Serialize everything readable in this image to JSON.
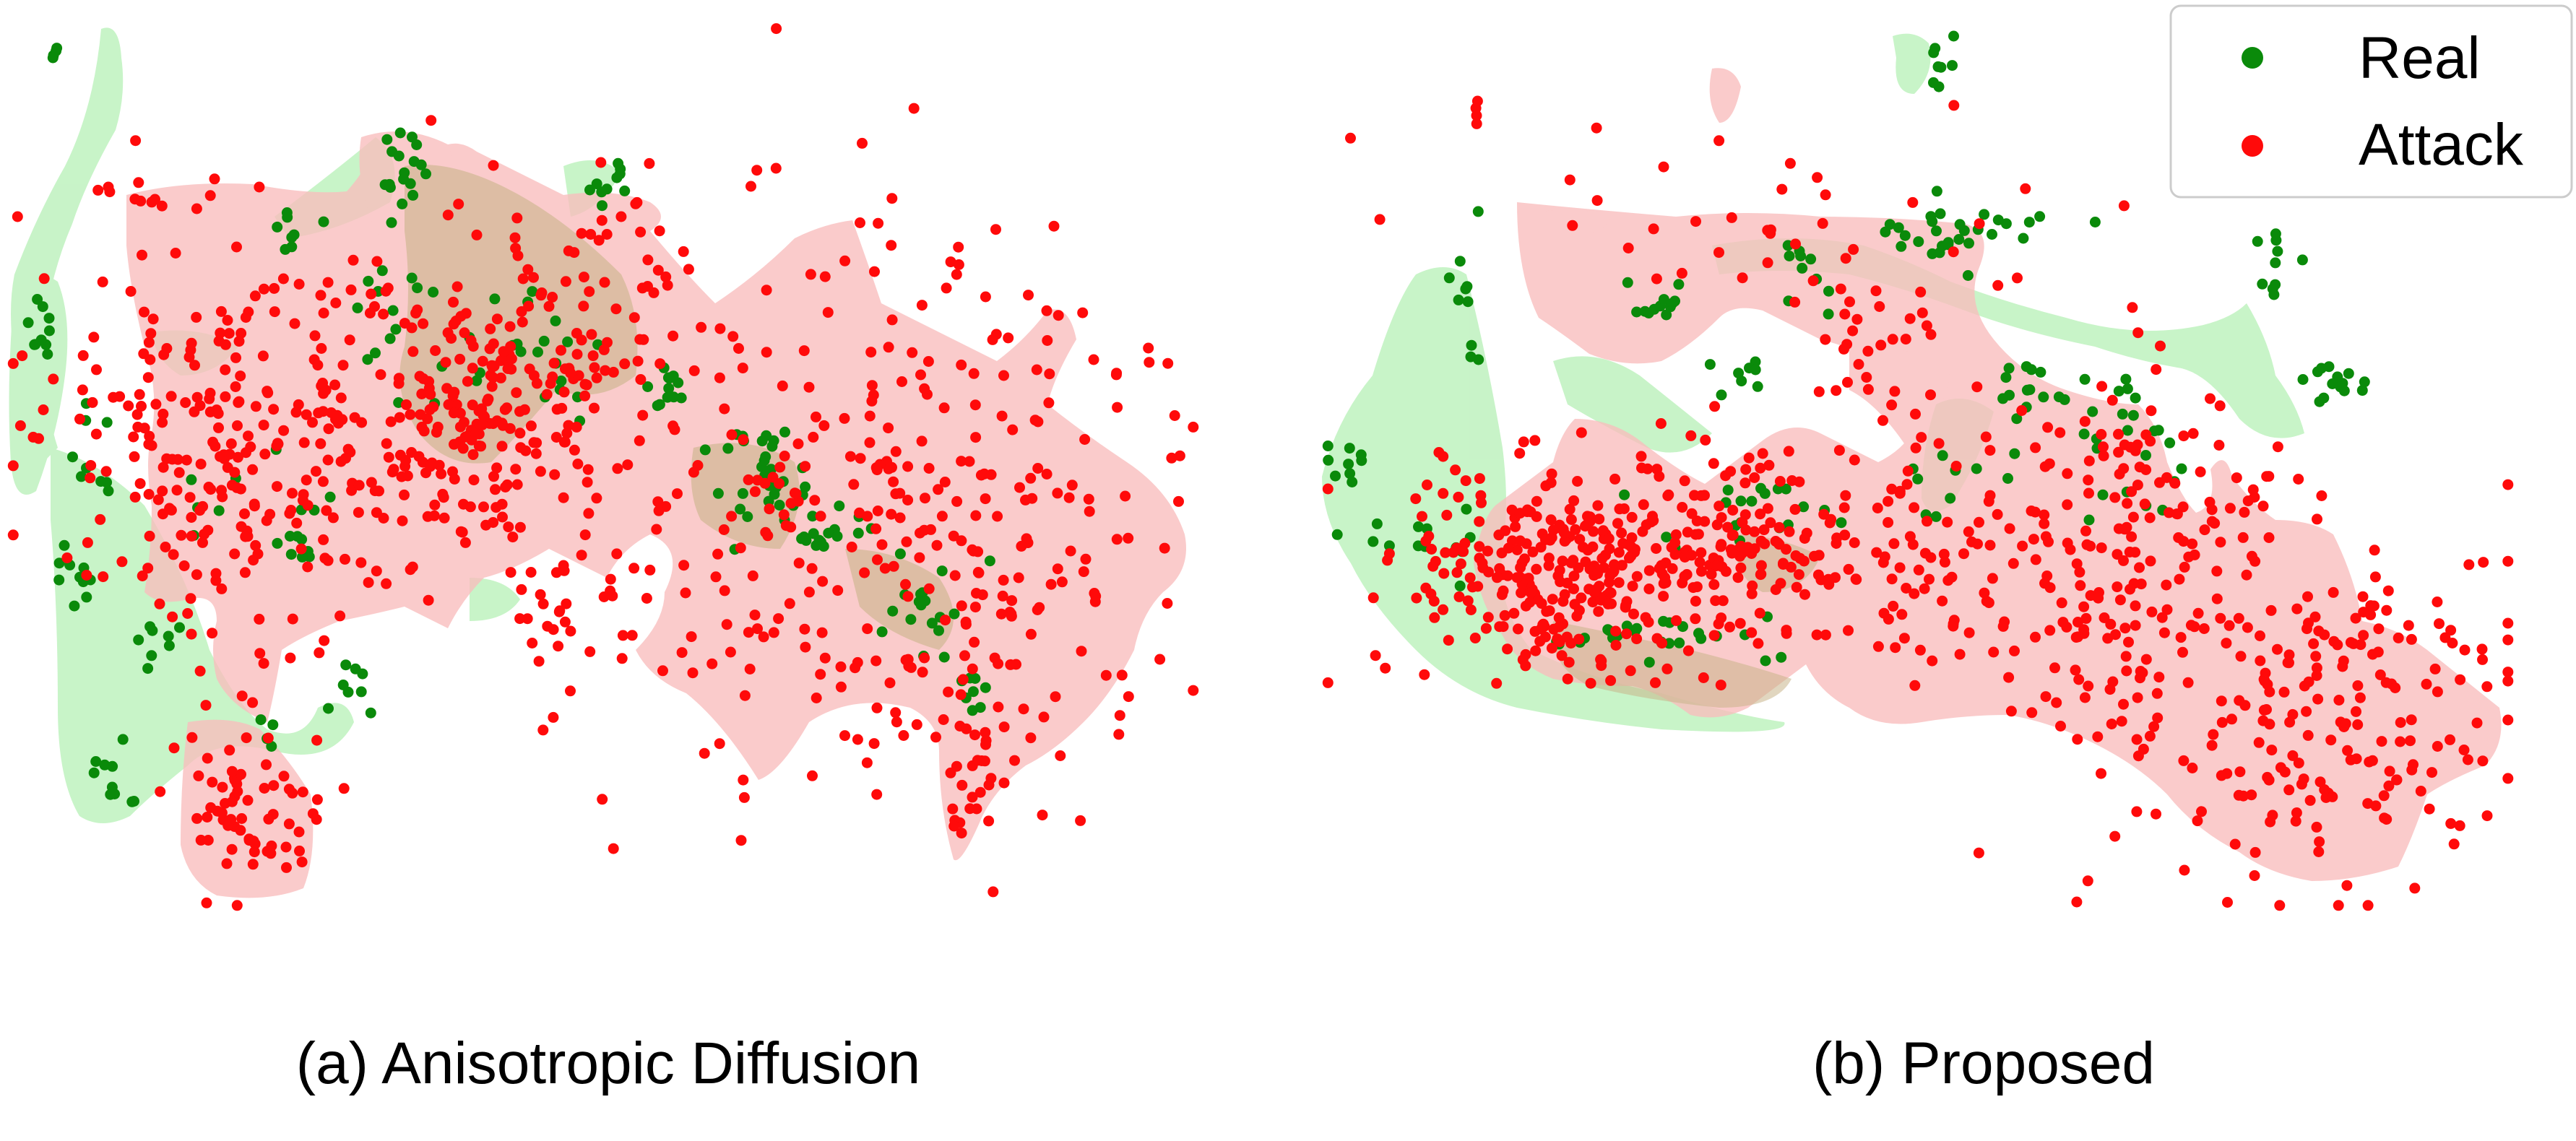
{
  "colors": {
    "real": "#0a8a0a",
    "attack": "#ff0a0a",
    "real_region": "#b6f0b6",
    "attack_region": "#f9b9b9",
    "overlap_region": "#c9b48a"
  },
  "legend": {
    "items": [
      {
        "label": "Real",
        "color": "#0a8a0a"
      },
      {
        "label": "Attack",
        "color": "#ff0a0a"
      }
    ]
  },
  "chart_data": [
    {
      "type": "scatter",
      "title": "(a) Anisotropic Diffusion",
      "axes_visible": false,
      "grid": false,
      "series": [
        {
          "name": "Real",
          "color": "#0a8a0a",
          "clusters": [
            {
              "cx": 0.04,
              "cy": 0.04,
              "n": 4,
              "sx": 0.004,
              "sy": 0.006
            },
            {
              "cx": 0.03,
              "cy": 0.36,
              "n": 10,
              "sx": 0.006,
              "sy": 0.03
            },
            {
              "cx": 0.07,
              "cy": 0.5,
              "n": 8,
              "sx": 0.012,
              "sy": 0.025
            },
            {
              "cx": 0.06,
              "cy": 0.62,
              "n": 10,
              "sx": 0.01,
              "sy": 0.02
            },
            {
              "cx": 0.13,
              "cy": 0.7,
              "n": 8,
              "sx": 0.01,
              "sy": 0.02
            },
            {
              "cx": 0.09,
              "cy": 0.85,
              "n": 10,
              "sx": 0.01,
              "sy": 0.02
            },
            {
              "cx": 0.29,
              "cy": 0.75,
              "n": 8,
              "sx": 0.01,
              "sy": 0.02
            },
            {
              "cx": 0.33,
              "cy": 0.17,
              "n": 18,
              "sx": 0.012,
              "sy": 0.025
            },
            {
              "cx": 0.24,
              "cy": 0.24,
              "n": 8,
              "sx": 0.012,
              "sy": 0.015
            },
            {
              "cx": 0.5,
              "cy": 0.18,
              "n": 10,
              "sx": 0.012,
              "sy": 0.02
            },
            {
              "cx": 0.32,
              "cy": 0.32,
              "n": 10,
              "sx": 0.015,
              "sy": 0.03
            },
            {
              "cx": 0.42,
              "cy": 0.38,
              "n": 25,
              "sx": 0.04,
              "sy": 0.05
            },
            {
              "cx": 0.55,
              "cy": 0.42,
              "n": 12,
              "sx": 0.012,
              "sy": 0.015
            },
            {
              "cx": 0.64,
              "cy": 0.52,
              "n": 30,
              "sx": 0.025,
              "sy": 0.04
            },
            {
              "cx": 0.68,
              "cy": 0.58,
              "n": 18,
              "sx": 0.02,
              "sy": 0.015
            },
            {
              "cx": 0.77,
              "cy": 0.66,
              "n": 18,
              "sx": 0.02,
              "sy": 0.025
            },
            {
              "cx": 0.81,
              "cy": 0.76,
              "n": 8,
              "sx": 0.006,
              "sy": 0.02
            },
            {
              "cx": 0.16,
              "cy": 0.55,
              "n": 10,
              "sx": 0.04,
              "sy": 0.04
            },
            {
              "cx": 0.25,
              "cy": 0.58,
              "n": 8,
              "sx": 0.015,
              "sy": 0.03
            },
            {
              "cx": 0.22,
              "cy": 0.8,
              "n": 4,
              "sx": 0.01,
              "sy": 0.01
            }
          ]
        },
        {
          "name": "Attack",
          "color": "#ff0a0a",
          "clusters": [
            {
              "cx": 0.19,
              "cy": 0.48,
              "n": 260,
              "sx": 0.08,
              "sy": 0.1
            },
            {
              "cx": 0.39,
              "cy": 0.44,
              "n": 220,
              "sx": 0.06,
              "sy": 0.08
            },
            {
              "cx": 0.48,
              "cy": 0.32,
              "n": 60,
              "sx": 0.05,
              "sy": 0.08
            },
            {
              "cx": 0.7,
              "cy": 0.55,
              "n": 240,
              "sx": 0.12,
              "sy": 0.17
            },
            {
              "cx": 0.84,
              "cy": 0.6,
              "n": 110,
              "sx": 0.08,
              "sy": 0.13
            },
            {
              "cx": 0.2,
              "cy": 0.88,
              "n": 70,
              "sx": 0.03,
              "sy": 0.05
            },
            {
              "cx": 0.13,
              "cy": 0.2,
              "n": 12,
              "sx": 0.03,
              "sy": 0.01
            },
            {
              "cx": 0.81,
              "cy": 0.85,
              "n": 20,
              "sx": 0.015,
              "sy": 0.05
            },
            {
              "cx": 0.47,
              "cy": 0.68,
              "n": 25,
              "sx": 0.04,
              "sy": 0.04
            }
          ]
        }
      ]
    },
    {
      "type": "scatter",
      "title": "(b) Proposed",
      "axes_visible": false,
      "grid": false,
      "series": [
        {
          "name": "Real",
          "color": "#0a8a0a",
          "clusters": [
            {
              "cx": 0.52,
              "cy": 0.04,
              "n": 8,
              "sx": 0.006,
              "sy": 0.015
            },
            {
              "cx": 0.12,
              "cy": 0.32,
              "n": 10,
              "sx": 0.01,
              "sy": 0.04
            },
            {
              "cx": 0.03,
              "cy": 0.5,
              "n": 10,
              "sx": 0.01,
              "sy": 0.03
            },
            {
              "cx": 0.09,
              "cy": 0.58,
              "n": 12,
              "sx": 0.03,
              "sy": 0.02
            },
            {
              "cx": 0.28,
              "cy": 0.32,
              "n": 12,
              "sx": 0.02,
              "sy": 0.015
            },
            {
              "cx": 0.4,
              "cy": 0.28,
              "n": 10,
              "sx": 0.015,
              "sy": 0.03
            },
            {
              "cx": 0.53,
              "cy": 0.24,
              "n": 30,
              "sx": 0.04,
              "sy": 0.02
            },
            {
              "cx": 0.8,
              "cy": 0.28,
              "n": 10,
              "sx": 0.01,
              "sy": 0.03
            },
            {
              "cx": 0.85,
              "cy": 0.41,
              "n": 14,
              "sx": 0.012,
              "sy": 0.012
            },
            {
              "cx": 0.35,
              "cy": 0.4,
              "n": 8,
              "sx": 0.01,
              "sy": 0.01
            },
            {
              "cx": 0.59,
              "cy": 0.42,
              "n": 14,
              "sx": 0.015,
              "sy": 0.012
            },
            {
              "cx": 0.68,
              "cy": 0.48,
              "n": 24,
              "sx": 0.03,
              "sy": 0.05
            },
            {
              "cx": 0.36,
              "cy": 0.56,
              "n": 20,
              "sx": 0.04,
              "sy": 0.02
            },
            {
              "cx": 0.28,
              "cy": 0.7,
              "n": 25,
              "sx": 0.05,
              "sy": 0.015
            },
            {
              "cx": 0.53,
              "cy": 0.5,
              "n": 10,
              "sx": 0.04,
              "sy": 0.04
            }
          ]
        },
        {
          "name": "Attack",
          "color": "#ff0a0a",
          "clusters": [
            {
              "cx": 0.13,
              "cy": 0.12,
              "n": 4,
              "sx": 0.004,
              "sy": 0.01
            },
            {
              "cx": 0.33,
              "cy": 0.23,
              "n": 40,
              "sx": 0.12,
              "sy": 0.06
            },
            {
              "cx": 0.2,
              "cy": 0.62,
              "n": 300,
              "sx": 0.06,
              "sy": 0.06
            },
            {
              "cx": 0.36,
              "cy": 0.6,
              "n": 140,
              "sx": 0.05,
              "sy": 0.06
            },
            {
              "cx": 0.49,
              "cy": 0.58,
              "n": 40,
              "sx": 0.02,
              "sy": 0.07
            },
            {
              "cx": 0.47,
              "cy": 0.37,
              "n": 25,
              "sx": 0.03,
              "sy": 0.04
            },
            {
              "cx": 0.67,
              "cy": 0.58,
              "n": 160,
              "sx": 0.06,
              "sy": 0.1
            },
            {
              "cx": 0.82,
              "cy": 0.78,
              "n": 220,
              "sx": 0.09,
              "sy": 0.1
            },
            {
              "cx": 0.58,
              "cy": 0.66,
              "n": 40,
              "sx": 0.06,
              "sy": 0.06
            }
          ]
        }
      ]
    }
  ]
}
